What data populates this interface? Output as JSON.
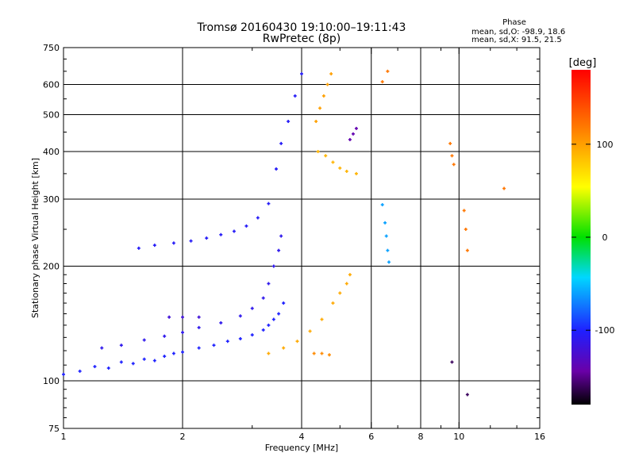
{
  "title": "Tromsø 20160430 19:10:00–19:11:43",
  "subtitle": "RwPretec (8p)",
  "phase_box": {
    "heading": "Phase",
    "line_o": "mean, sd,O: -98.9, 18.6",
    "line_x": "mean, sd,X:  91.5, 21.5"
  },
  "colorbar": {
    "label": "[deg]",
    "ticks": [
      {
        "value": 100,
        "label": "100"
      },
      {
        "value": 0,
        "label": "0"
      },
      {
        "value": -100,
        "label": "-100"
      }
    ],
    "range": [
      -180,
      180
    ]
  },
  "chart_data": {
    "type": "scatter",
    "title": "Tromsø 20160430 19:10:00–19:11:43",
    "subtitle": "RwPretec (8p)",
    "xlabel": "Frequency [MHz]",
    "ylabel": "Stationary phase Virtual Height [km]",
    "xscale": "log",
    "yscale": "log",
    "xlim": [
      1,
      16
    ],
    "ylim": [
      75,
      750
    ],
    "x_ticks": [
      1,
      2,
      4,
      6,
      8,
      10,
      16
    ],
    "x_tick_labels": [
      "1",
      "2",
      "4",
      "6",
      "8",
      "10",
      "16"
    ],
    "x_grid": [
      2,
      4,
      6,
      8,
      10
    ],
    "y_ticks": [
      75,
      100,
      200,
      300,
      400,
      500,
      600,
      750
    ],
    "y_tick_labels": [
      "75",
      "100",
      "200",
      "300",
      "400",
      "500",
      "600",
      "750"
    ],
    "y_grid": [
      100,
      200,
      300,
      400,
      500,
      600
    ],
    "color_scale": "rainbow (phase, deg)",
    "traces": [
      {
        "name": "",
        "phase_deg": -100,
        "points": [
          [
            1.0,
            104
          ],
          [
            1.1,
            106
          ],
          [
            1.2,
            109
          ],
          [
            1.3,
            108
          ],
          [
            1.4,
            112
          ],
          [
            1.5,
            111
          ],
          [
            1.6,
            114
          ],
          [
            1.7,
            113
          ],
          [
            1.8,
            116
          ],
          [
            1.9,
            118
          ],
          [
            2.0,
            119
          ],
          [
            2.2,
            122
          ],
          [
            2.4,
            124
          ],
          [
            2.6,
            127
          ],
          [
            2.8,
            129
          ],
          [
            3.0,
            132
          ],
          [
            3.2,
            136
          ],
          [
            3.3,
            140
          ],
          [
            3.4,
            145
          ],
          [
            3.5,
            150
          ],
          [
            3.6,
            160
          ]
        ]
      },
      {
        "name": "",
        "phase_deg": -110,
        "points": [
          [
            1.25,
            122
          ],
          [
            1.4,
            124
          ],
          [
            1.6,
            128
          ],
          [
            1.8,
            131
          ],
          [
            2.0,
            134
          ],
          [
            2.2,
            138
          ],
          [
            2.5,
            142
          ],
          [
            2.8,
            148
          ],
          [
            3.0,
            155
          ],
          [
            3.2,
            165
          ],
          [
            3.3,
            180
          ],
          [
            3.4,
            200
          ],
          [
            3.5,
            220
          ],
          [
            3.55,
            240
          ]
        ]
      },
      {
        "name": "",
        "phase_deg": -105,
        "points": [
          [
            1.55,
            223
          ],
          [
            1.7,
            227
          ],
          [
            1.9,
            230
          ],
          [
            2.1,
            233
          ],
          [
            2.3,
            237
          ],
          [
            2.5,
            242
          ],
          [
            2.7,
            247
          ],
          [
            2.9,
            255
          ],
          [
            3.1,
            268
          ],
          [
            3.3,
            292
          ],
          [
            3.45,
            360
          ],
          [
            3.55,
            420
          ],
          [
            3.7,
            480
          ],
          [
            3.85,
            560
          ],
          [
            4.0,
            640
          ]
        ]
      },
      {
        "name": "",
        "phase_deg": -120,
        "points": [
          [
            1.85,
            147
          ],
          [
            2.0,
            147
          ],
          [
            2.2,
            147
          ]
        ]
      },
      {
        "name": "",
        "phase_deg": 95,
        "points": [
          [
            3.3,
            118
          ],
          [
            3.6,
            122
          ],
          [
            3.9,
            127
          ],
          [
            4.2,
            135
          ],
          [
            4.5,
            145
          ],
          [
            4.8,
            160
          ],
          [
            5.0,
            170
          ],
          [
            5.2,
            180
          ],
          [
            5.3,
            190
          ]
        ]
      },
      {
        "name": "",
        "phase_deg": 90,
        "points": [
          [
            4.4,
            400
          ],
          [
            4.6,
            390
          ],
          [
            4.8,
            375
          ],
          [
            5.0,
            362
          ],
          [
            5.2,
            355
          ],
          [
            5.5,
            350
          ]
        ]
      },
      {
        "name": "",
        "phase_deg": 100,
        "points": [
          [
            4.35,
            480
          ],
          [
            4.45,
            520
          ],
          [
            4.55,
            560
          ],
          [
            4.65,
            600
          ],
          [
            4.75,
            640
          ]
        ]
      },
      {
        "name": "",
        "phase_deg": 110,
        "points": [
          [
            4.3,
            118
          ],
          [
            4.5,
            118
          ],
          [
            4.7,
            117
          ]
        ]
      },
      {
        "name": "",
        "phase_deg": -140,
        "points": [
          [
            5.3,
            430
          ],
          [
            5.4,
            445
          ],
          [
            5.5,
            460
          ]
        ]
      },
      {
        "name": "",
        "phase_deg": 120,
        "points": [
          [
            6.4,
            610
          ],
          [
            6.6,
            650
          ],
          [
            9.5,
            420
          ],
          [
            9.6,
            390
          ],
          [
            9.7,
            370
          ],
          [
            10.3,
            280
          ],
          [
            10.4,
            250
          ],
          [
            10.5,
            220
          ],
          [
            13.0,
            320
          ]
        ]
      },
      {
        "name": "",
        "phase_deg": -60,
        "points": [
          [
            6.4,
            290
          ],
          [
            6.5,
            260
          ],
          [
            6.55,
            240
          ],
          [
            6.6,
            220
          ],
          [
            6.65,
            205
          ]
        ]
      },
      {
        "name": "",
        "phase_deg": -160,
        "points": [
          [
            9.6,
            112
          ],
          [
            10.5,
            92
          ]
        ]
      }
    ]
  }
}
